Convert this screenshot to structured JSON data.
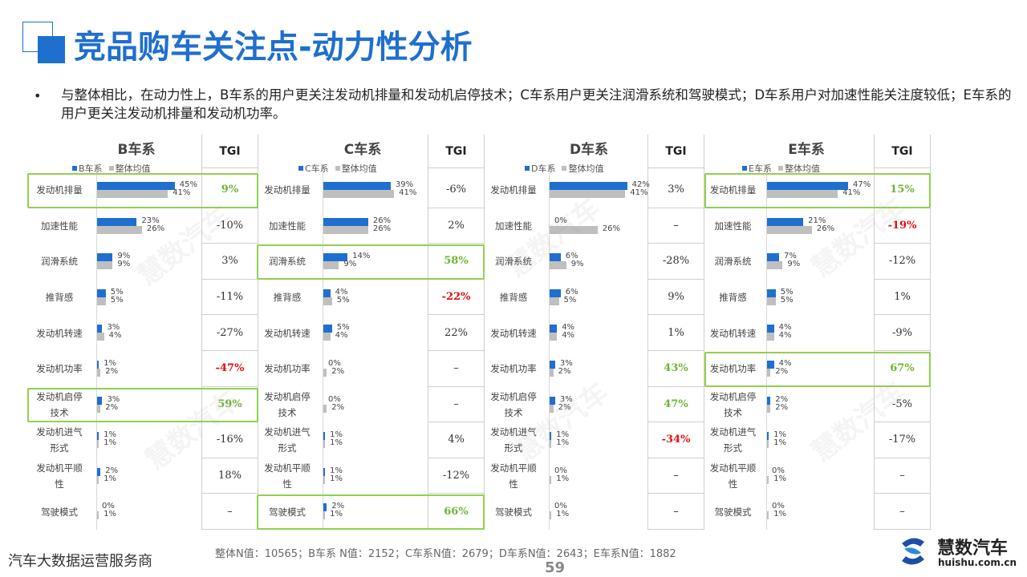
{
  "title": "竞品购车关注点-动力性分析",
  "bullet": "与整体相比，在动力性上，B车系的用户更关注发动机排量和发动机启停技术；C车系用户更关注润滑系统和驾驶模式；D车系用户对加速性能关注度较低；E车系的用户更关注发动机排量和发动机功率。",
  "tgi_header": "TGI",
  "legend_overall": "整体均值",
  "footer_left": "汽车大数据运营服务商",
  "footer_n": "整体N值：10565；B车系 N值：2152；C车系N值：2679；D车系N值：2643；E车系N值：1882",
  "page_number": "59",
  "logo": {
    "name": "慧数汽车",
    "url": "huishu.com.cn"
  },
  "watermark": "慧数汽车",
  "colors": {
    "series": "#1f6fcf",
    "overall": "#bfbfbf",
    "highlight": "#92d050",
    "tgi_positive": "#6fb535",
    "tgi_negative": "#e01010"
  },
  "chart_data": [
    {
      "type": "bar",
      "title": "B车系",
      "categories": [
        "发动机排量",
        "加速性能",
        "润滑系统",
        "推背感",
        "发动机转速",
        "发动机功率",
        "发动机启停技术",
        "发动机进气形式",
        "发动机平顺性",
        "驾驶模式"
      ],
      "category_labels": [
        [
          "发动机排量"
        ],
        [
          "加速性能"
        ],
        [
          "润滑系统"
        ],
        [
          "推背感"
        ],
        [
          "发动机转速"
        ],
        [
          "发动机功率"
        ],
        [
          "发动机启停",
          "技术"
        ],
        [
          "发动机进气",
          "形式"
        ],
        [
          "发动机平顺",
          "性"
        ],
        [
          "驾驶模式"
        ]
      ],
      "series": [
        {
          "name": "B车系",
          "values": [
            45,
            23,
            9,
            5,
            3,
            1,
            3,
            1,
            2,
            0
          ]
        },
        {
          "name": "整体均值",
          "values": [
            41,
            26,
            9,
            5,
            4,
            2,
            2,
            1,
            1,
            1
          ]
        }
      ],
      "value_labels": [
        [
          "45%",
          "23%",
          "9%",
          "5%",
          "3%",
          "1%",
          "3%",
          "1%",
          "2%",
          "0%"
        ],
        [
          "41%",
          "26%",
          "9%",
          "5%",
          "4%",
          "2%",
          "2%",
          "1%",
          "1%",
          "1%"
        ]
      ],
      "tgi": [
        "9%",
        "-10%",
        "3%",
        "-11%",
        "-27%",
        "-47%",
        "59%",
        "-16%",
        "18%",
        "–"
      ],
      "tgi_style": [
        "green",
        "",
        "",
        "",
        "",
        "red",
        "green",
        "",
        "",
        ""
      ],
      "highlight_rows": [
        0,
        6
      ]
    },
    {
      "type": "bar",
      "title": "C车系",
      "categories": [
        "发动机排量",
        "加速性能",
        "润滑系统",
        "推背感",
        "发动机转速",
        "发动机功率",
        "发动机启停技术",
        "发动机进气形式",
        "发动机平顺性",
        "驾驶模式"
      ],
      "category_labels": [
        [
          "发动机排量"
        ],
        [
          "加速性能"
        ],
        [
          "润滑系统"
        ],
        [
          "推背感"
        ],
        [
          "发动机转速"
        ],
        [
          "发动机功率"
        ],
        [
          "发动机启停",
          "技术"
        ],
        [
          "发动机进气",
          "形式"
        ],
        [
          "发动机平顺",
          "性"
        ],
        [
          "驾驶模式"
        ]
      ],
      "series": [
        {
          "name": "C车系",
          "values": [
            39,
            26,
            14,
            4,
            5,
            0,
            0,
            1,
            1,
            2
          ]
        },
        {
          "name": "整体均值",
          "values": [
            41,
            26,
            9,
            5,
            4,
            2,
            2,
            1,
            1,
            1
          ]
        }
      ],
      "value_labels": [
        [
          "39%",
          "26%",
          "14%",
          "4%",
          "5%",
          "0%",
          "0%",
          "1%",
          "1%",
          "2%"
        ],
        [
          "41%",
          "26%",
          "9%",
          "5%",
          "4%",
          "2%",
          "2%",
          "1%",
          "1%",
          "1%"
        ]
      ],
      "tgi": [
        "-6%",
        "2%",
        "58%",
        "-22%",
        "22%",
        "–",
        "–",
        "4%",
        "-12%",
        "66%"
      ],
      "tgi_style": [
        "",
        "",
        "green",
        "red",
        "",
        "",
        "",
        "",
        "",
        "green"
      ],
      "highlight_rows": [
        2,
        9
      ]
    },
    {
      "type": "bar",
      "title": "D车系",
      "categories": [
        "发动机排量",
        "加速性能",
        "润滑系统",
        "推背感",
        "发动机转速",
        "发动机功率",
        "发动机启停技术",
        "发动机进气形式",
        "发动机平顺性",
        "驾驶模式"
      ],
      "category_labels": [
        [
          "发动机排量"
        ],
        [
          "加速性能"
        ],
        [
          "润滑系统"
        ],
        [
          "推背感"
        ],
        [
          "发动机转速"
        ],
        [
          "发动机功率"
        ],
        [
          "发动机启停",
          "技术"
        ],
        [
          "发动机进气",
          "形式"
        ],
        [
          "发动机平顺",
          "性"
        ],
        [
          "驾驶模式"
        ]
      ],
      "series": [
        {
          "name": "D车系",
          "values": [
            42,
            0,
            6,
            6,
            4,
            3,
            3,
            1,
            0,
            0
          ]
        },
        {
          "name": "整体均值",
          "values": [
            41,
            26,
            9,
            5,
            4,
            2,
            2,
            1,
            1,
            1
          ]
        }
      ],
      "value_labels": [
        [
          "42%",
          "0%",
          "6%",
          "6%",
          "4%",
          "3%",
          "3%",
          "1%",
          "0%",
          "0%"
        ],
        [
          "41%",
          "26%",
          "9%",
          "5%",
          "4%",
          "2%",
          "2%",
          "1%",
          "1%",
          "1%"
        ]
      ],
      "tgi": [
        "3%",
        "–",
        "-28%",
        "9%",
        "1%",
        "43%",
        "47%",
        "-34%",
        "–",
        "–"
      ],
      "tgi_style": [
        "",
        "",
        "",
        "",
        "",
        "green",
        "green",
        "red",
        "",
        ""
      ],
      "highlight_rows": []
    },
    {
      "type": "bar",
      "title": "E车系",
      "categories": [
        "发动机排量",
        "加速性能",
        "润滑系统",
        "推背感",
        "发动机转速",
        "发动机功率",
        "发动机启停技术",
        "发动机进气形式",
        "发动机平顺性",
        "驾驶模式"
      ],
      "category_labels": [
        [
          "发动机排量"
        ],
        [
          "加速性能"
        ],
        [
          "润滑系统"
        ],
        [
          "推背感"
        ],
        [
          "发动机转速"
        ],
        [
          "发动机功率"
        ],
        [
          "发动机启停",
          "技术"
        ],
        [
          "发动机进气",
          "形式"
        ],
        [
          "发动机平顺",
          "性"
        ],
        [
          "驾驶模式"
        ]
      ],
      "series": [
        {
          "name": "E车系",
          "values": [
            47,
            21,
            7,
            5,
            4,
            4,
            2,
            1,
            0,
            0
          ]
        },
        {
          "name": "整体均值",
          "values": [
            41,
            26,
            9,
            5,
            4,
            2,
            2,
            1,
            1,
            1
          ]
        }
      ],
      "value_labels": [
        [
          "47%",
          "21%",
          "7%",
          "5%",
          "4%",
          "4%",
          "2%",
          "1%",
          "0%",
          "0%"
        ],
        [
          "41%",
          "26%",
          "9%",
          "5%",
          "4%",
          "2%",
          "2%",
          "1%",
          "1%",
          "1%"
        ]
      ],
      "tgi": [
        "15%",
        "-19%",
        "-12%",
        "1%",
        "-9%",
        "67%",
        "-5%",
        "-17%",
        "–",
        "–"
      ],
      "tgi_style": [
        "green",
        "red",
        "",
        "",
        "",
        "green",
        "",
        "",
        "",
        ""
      ],
      "highlight_rows": [
        0,
        5
      ]
    }
  ]
}
